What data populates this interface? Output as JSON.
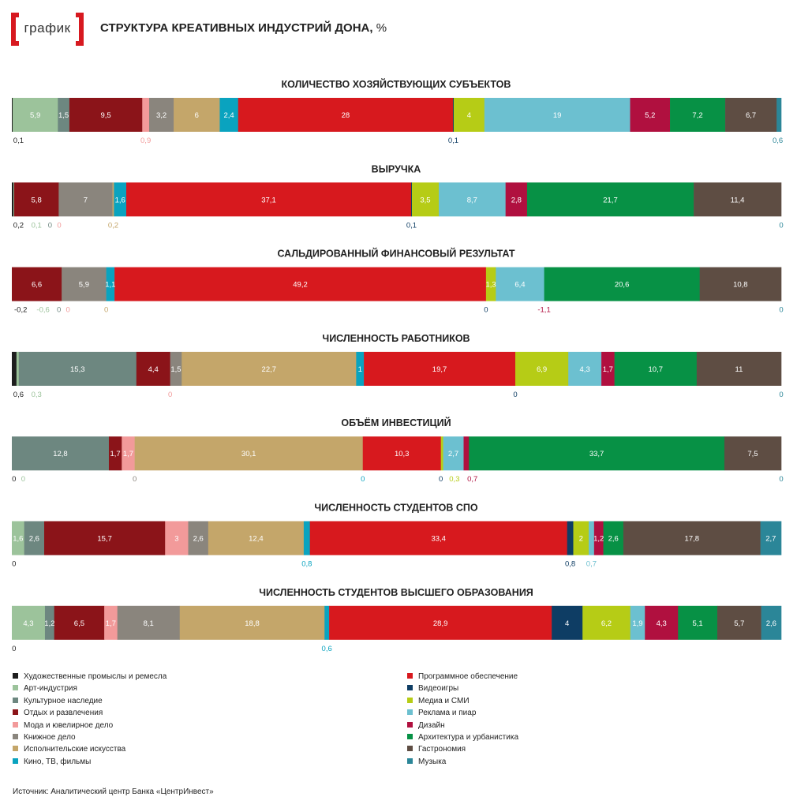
{
  "logo": {
    "text": "график"
  },
  "header": {
    "title": "СТРУКТУРА КРЕАТИВНЫХ ИНДУСТРИЙ ДОНА,",
    "unit": " %"
  },
  "colors": [
    "#1e1e1e",
    "#9cc39b",
    "#6d8780",
    "#8b1419",
    "#f29a9a",
    "#8a857d",
    "#c4a66a",
    "#0aa3bf",
    "#d7191e",
    "#0e3d64",
    "#b6cc16",
    "#6cc0d0",
    "#b0103f",
    "#079145",
    "#5e4d43",
    "#2b8698"
  ],
  "categories": [
    "Художественные промыслы и ремесла",
    "Арт-индустрия",
    "Культурное наследие",
    "Отдых и развлечения",
    "Мода и ювелирное дело",
    "Книжное дело",
    "Исполнительские искусства",
    "Кино, ТВ, фильмы",
    "Программное обеспечение",
    "Видеоигры",
    "Медиа и СМИ",
    "Реклама и пиар",
    "Дизайн",
    "Архитектура и урбанистика",
    "Гастрономия",
    "Музыка"
  ],
  "chart_data": {
    "type": "bar",
    "orientation": "horizontal-stacked-100",
    "title": "СТРУКТУРА КРЕАТИВНЫХ ИНДУСТРИЙ ДОНА, %",
    "series_names": [
      "Художественные промыслы и ремесла",
      "Арт-индустрия",
      "Культурное наследие",
      "Отдых и развлечения",
      "Мода и ювелирное дело",
      "Книжное дело",
      "Исполнительские искусства",
      "Кино, ТВ, фильмы",
      "Программное обеспечение",
      "Видеоигры",
      "Медиа и СМИ",
      "Реклама и пиар",
      "Дизайн",
      "Архитектура и урбанистика",
      "Гастрономия",
      "Музыка"
    ],
    "bars": [
      {
        "title": "КОЛИЧЕСТВО ХОЗЯЙСТВУЮЩИХ СУБЪЕКТОВ",
        "values": [
          0.1,
          5.9,
          1.5,
          9.5,
          0.9,
          3.2,
          6,
          2.4,
          28,
          0.1,
          4,
          19,
          5.2,
          7.2,
          6.7,
          0.6
        ],
        "labels": [
          "0,1",
          "5,9",
          "1,5",
          "9,5",
          "0,9",
          "3,2",
          "6",
          "2,4",
          "28",
          "0,1",
          "4",
          "19",
          "5,2",
          "7,2",
          "6,7",
          "0,6"
        ],
        "below": [
          0,
          4,
          9,
          15
        ]
      },
      {
        "title": "ВЫРУЧКА",
        "values": [
          0.2,
          0.1,
          0,
          5.8,
          0,
          7,
          0.2,
          1.6,
          37.1,
          0.1,
          3.5,
          8.7,
          2.8,
          21.7,
          11.4,
          0
        ],
        "labels": [
          "0,2",
          "0,1",
          "0",
          "5,8",
          "0",
          "7",
          "0,2",
          "1,6",
          "37,1",
          "0,1",
          "3,5",
          "8,7",
          "2,8",
          "21,7",
          "11,4",
          "0"
        ],
        "below": [
          0,
          1,
          2,
          4,
          6,
          9,
          15
        ]
      },
      {
        "title": "САЛЬДИРОВАННЫЙ ФИНАНСОВЫЙ РЕЗУЛЬТАТ",
        "values": [
          -0.2,
          -0.6,
          0,
          6.6,
          0,
          5.9,
          0,
          1.1,
          49.2,
          0,
          1.3,
          6.4,
          -1.1,
          20.6,
          10.8,
          0
        ],
        "labels": [
          "-0,2",
          "-0,6",
          "0",
          "6,6",
          "0",
          "5,9",
          "0",
          "1,1",
          "49,2",
          "0",
          "1,3",
          "6,4",
          "-1,1",
          "20,6",
          "10,8",
          "0"
        ],
        "below": [
          0,
          1,
          2,
          4,
          6,
          9,
          12,
          15
        ]
      },
      {
        "title": "ЧИСЛЕННОСТЬ РАБОТНИКОВ",
        "values": [
          0.6,
          0.3,
          15.3,
          4.4,
          0,
          1.5,
          22.7,
          1,
          19.7,
          0,
          6.9,
          4.3,
          1.7,
          10.7,
          11,
          0
        ],
        "labels": [
          "0,6",
          "0,3",
          "15,3",
          "4,4",
          "0",
          "1,5",
          "22,7",
          "1",
          "19,7",
          "0",
          "6,9",
          "4,3",
          "1,7",
          "10,7",
          "11",
          "0"
        ],
        "below": [
          0,
          1,
          4,
          9,
          15
        ]
      },
      {
        "title": "ОБЪЁМ ИНВЕСТИЦИЙ",
        "values": [
          0,
          0,
          12.8,
          1.7,
          1.7,
          0,
          30.1,
          0,
          10.3,
          0,
          0.3,
          2.7,
          0.7,
          33.7,
          7.5,
          0
        ],
        "labels": [
          "0",
          "0",
          "12,8",
          "1,7",
          "1,7",
          "0",
          "30,1",
          "0",
          "10,3",
          "0",
          "0,3",
          "2,7",
          "0,7",
          "33,7",
          "7,5",
          "0"
        ],
        "below": [
          0,
          1,
          5,
          7,
          9,
          10,
          12,
          15
        ]
      },
      {
        "title": "ЧИСЛЕННОСТЬ СТУДЕНТОВ СПО",
        "values": [
          0,
          1.6,
          2.6,
          15.7,
          3,
          2.6,
          12.4,
          0.8,
          33.4,
          0.8,
          2,
          0.7,
          1.2,
          2.6,
          17.8,
          2.7
        ],
        "labels": [
          "0",
          "1,6",
          "2,6",
          "15,7",
          "3",
          "2,6",
          "12,4",
          "0,8",
          "33,4",
          "0,8",
          "2",
          "0,7",
          "1,2",
          "2,6",
          "17,8",
          "2,7"
        ],
        "below": [
          0,
          7,
          9,
          11
        ]
      },
      {
        "title": "ЧИСЛЕННОСТЬ СТУДЕНТОВ ВЫСШЕГО ОБРАЗОВАНИЯ",
        "values": [
          0,
          4.3,
          1.2,
          6.5,
          1.7,
          8.1,
          18.8,
          0.6,
          28.9,
          4,
          6.2,
          1.9,
          4.3,
          5.1,
          5.7,
          2.6
        ],
        "labels": [
          "0",
          "4,3",
          "1,2",
          "6,5",
          "1,7",
          "8,1",
          "18,8",
          "0,6",
          "28,9",
          "4",
          "6,2",
          "1,9",
          "4,3",
          "5,1",
          "5,7",
          "2,6"
        ],
        "below": [
          0,
          7
        ]
      }
    ]
  },
  "source": "Источник: Аналитический центр Банка «ЦентрИнвест»"
}
